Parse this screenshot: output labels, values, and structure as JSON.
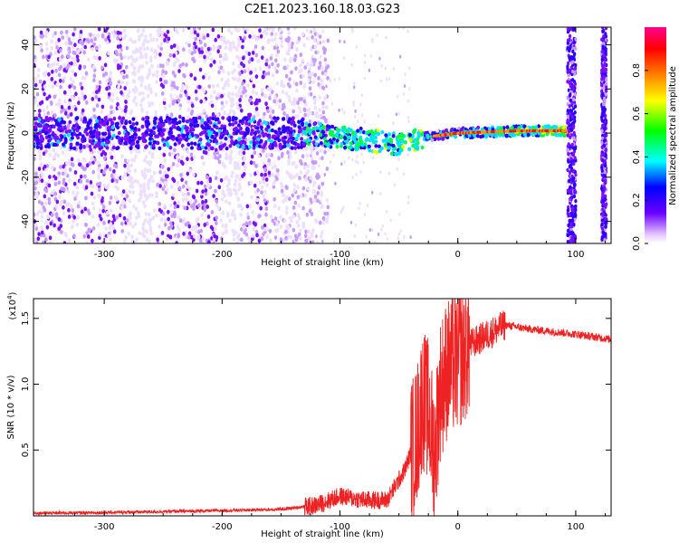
{
  "title": "C2E1.2023.160.18.03.G23",
  "chart_data": [
    {
      "type": "heatmap",
      "xlabel": "Height of straight line (km)",
      "ylabel": "Frequency (Hz)",
      "xlim": [
        -360,
        130
      ],
      "ylim": [
        -50,
        48
      ],
      "xticks": [
        -300,
        -200,
        -100,
        0,
        100
      ],
      "yticks": [
        -40,
        -20,
        0,
        20,
        40
      ],
      "colorbar": {
        "label": "Normalized spectral amplitude",
        "range": [
          0,
          1
        ],
        "ticks": [
          0.0,
          0.2,
          0.4,
          0.6,
          0.8
        ],
        "tick_labels": [
          "0.0",
          "0.2",
          "0.4",
          "0.6",
          "0.8"
        ],
        "colormap": [
          "#e8c8ff",
          "#6a00ff",
          "#0000ff",
          "#00ffff",
          "#00ff00",
          "#ffff00",
          "#ff8000",
          "#ff0000",
          "#ff0090"
        ]
      },
      "ridge": {
        "noise_x_range": [
          -360,
          -130
        ],
        "drift_points": [
          [
            -130,
            0
          ],
          [
            -80,
            -3
          ],
          [
            -50,
            -5
          ],
          [
            -30,
            -2
          ],
          [
            0,
            0
          ],
          [
            50,
            1
          ],
          [
            95,
            1
          ]
        ],
        "strong_x_range": [
          -20,
          95
        ],
        "gaps": [
          [
            -200,
            -185
          ],
          [
            -280,
            -255
          ]
        ],
        "bands": [
          [
            93,
            100
          ],
          [
            122,
            126
          ]
        ]
      }
    },
    {
      "type": "line",
      "xlabel": "Height of straight line (km)",
      "ylabel": "SNR (10 * v/v)",
      "yscale_label": "(x10",
      "yscale_exp": "4",
      "yscale_close": ")",
      "xlim": [
        -360,
        130
      ],
      "ylim": [
        0,
        1.65
      ],
      "xticks": [
        -300,
        -200,
        -100,
        0,
        100
      ],
      "yticks": [
        0.5,
        1.0,
        1.5
      ],
      "ytick_labels": [
        "0.5",
        "1.0",
        "1.5"
      ],
      "color": "#ee2222",
      "series": [
        {
          "x": [
            -360,
            -300,
            -200,
            -150,
            -120,
            -100,
            -80,
            -60,
            -45,
            -35,
            -30,
            -25,
            -20,
            -15,
            -10,
            0,
            10,
            20,
            30,
            40,
            60,
            80,
            100,
            130
          ],
          "y": [
            0.02,
            0.025,
            0.04,
            0.05,
            0.08,
            0.15,
            0.12,
            0.12,
            0.35,
            0.6,
            0.9,
            0.8,
            0.45,
            0.95,
            1.1,
            1.18,
            1.3,
            1.35,
            1.4,
            1.45,
            1.42,
            1.4,
            1.38,
            1.34
          ]
        }
      ]
    }
  ]
}
